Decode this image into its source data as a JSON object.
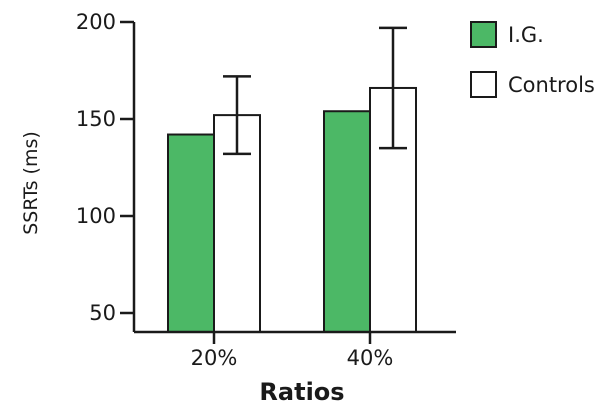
{
  "chart_data": {
    "type": "bar",
    "categories": [
      "20%",
      "40%"
    ],
    "series": [
      {
        "name": "I.G.",
        "values": [
          142,
          154
        ],
        "color": "#4cb866"
      },
      {
        "name": "Controls",
        "values": [
          152,
          166
        ],
        "errors": [
          20,
          31
        ],
        "color": "#ffffff"
      }
    ],
    "xlabel": "Ratios",
    "ylabel": "SSRTs (ms)",
    "ylim": [
      50,
      200
    ],
    "yticks": [
      50,
      100,
      150,
      200
    ],
    "grid": false,
    "legend_position": "top-right"
  }
}
